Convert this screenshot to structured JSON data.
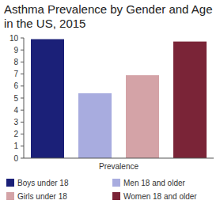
{
  "chart_data": {
    "type": "bar",
    "title": "Asthma Prevalence by Gender and Age in the US, 2015",
    "categories": [
      "Prevalence"
    ],
    "series": [
      {
        "name": "Boys under 18",
        "color": "#1b2078",
        "values": [
          9.9
        ]
      },
      {
        "name": "Men 18 and older",
        "color": "#a8acdf",
        "values": [
          5.4
        ]
      },
      {
        "name": "Girls under 18",
        "color": "#d4a3a7",
        "values": [
          6.9
        ]
      },
      {
        "name": "Women 18 and older",
        "color": "#7a2437",
        "values": [
          9.7
        ]
      }
    ],
    "ylim": [
      0,
      10
    ],
    "yticks": [
      0,
      1,
      2,
      3,
      4,
      5,
      6,
      7,
      8,
      9,
      10
    ],
    "grid": false,
    "legend": "bottom"
  }
}
